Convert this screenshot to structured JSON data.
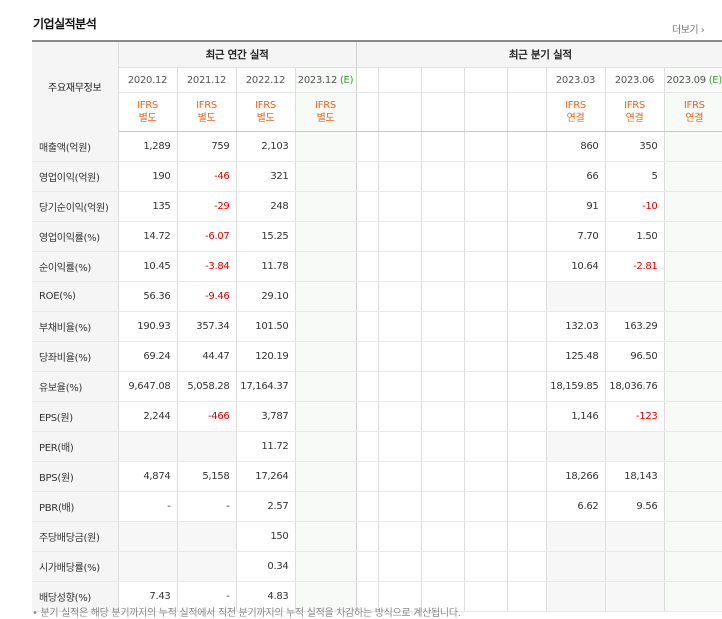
{
  "title": "기업실적분석",
  "more_label": "더보기",
  "corner_label": "주요재무정보",
  "annual_header": "최근 연간 실적",
  "quarter_header": "최근 분기 실적",
  "annual_periods": [
    "2020.12",
    "2021.12",
    "2022.12",
    "2023.12"
  ],
  "annual_est_mark": "(E)",
  "quarter_periods": [
    "",
    "",
    "",
    "",
    "",
    "2023.03",
    "2023.06",
    "2023.09"
  ],
  "quarter_est_mark": "(E)",
  "annual_standards": [
    [
      "IFRS",
      "별도"
    ],
    [
      "IFRS",
      "별도"
    ],
    [
      "IFRS",
      "별도"
    ],
    [
      "IFRS",
      "별도"
    ]
  ],
  "quarter_standards": [
    [
      "",
      ""
    ],
    [
      "",
      ""
    ],
    [
      "",
      ""
    ],
    [
      "",
      ""
    ],
    [
      "",
      ""
    ],
    [
      "IFRS",
      "연결"
    ],
    [
      "IFRS",
      "연결"
    ],
    [
      "IFRS",
      "연결"
    ]
  ],
  "rows": [
    {
      "label": "매출액(억원)",
      "annual": [
        "1,289",
        "759",
        "2,103",
        ""
      ],
      "quarter": [
        "",
        "",
        "",
        "",
        "",
        "860",
        "350",
        ""
      ]
    },
    {
      "label": "영업이익(억원)",
      "annual": [
        "190",
        "-46",
        "321",
        ""
      ],
      "quarter": [
        "",
        "",
        "",
        "",
        "",
        "66",
        "5",
        ""
      ]
    },
    {
      "label": "당기순이익(억원)",
      "annual": [
        "135",
        "-29",
        "248",
        ""
      ],
      "quarter": [
        "",
        "",
        "",
        "",
        "",
        "91",
        "-10",
        ""
      ]
    },
    {
      "label": "영업이익률(%)",
      "annual": [
        "14.72",
        "-6.07",
        "15.25",
        ""
      ],
      "quarter": [
        "",
        "",
        "",
        "",
        "",
        "7.70",
        "1.50",
        ""
      ]
    },
    {
      "label": "순이익률(%)",
      "annual": [
        "10.45",
        "-3.84",
        "11.78",
        ""
      ],
      "quarter": [
        "",
        "",
        "",
        "",
        "",
        "10.64",
        "-2.81",
        ""
      ]
    },
    {
      "label": "ROE(%)",
      "annual": [
        "56.36",
        "-9.46",
        "29.10",
        ""
      ],
      "quarter": [
        "",
        "",
        "",
        "",
        "",
        "",
        "",
        ""
      ]
    },
    {
      "label": "부채비율(%)",
      "annual": [
        "190.93",
        "357.34",
        "101.50",
        ""
      ],
      "quarter": [
        "",
        "",
        "",
        "",
        "",
        "132.03",
        "163.29",
        ""
      ]
    },
    {
      "label": "당좌비율(%)",
      "annual": [
        "69.24",
        "44.47",
        "120.19",
        ""
      ],
      "quarter": [
        "",
        "",
        "",
        "",
        "",
        "125.48",
        "96.50",
        ""
      ]
    },
    {
      "label": "유보율(%)",
      "annual": [
        "9,647.08",
        "5,058.28",
        "17,164.37",
        ""
      ],
      "quarter": [
        "",
        "",
        "",
        "",
        "",
        "18,159.85",
        "18,036.76",
        ""
      ]
    },
    {
      "label": "EPS(원)",
      "annual": [
        "2,244",
        "-466",
        "3,787",
        ""
      ],
      "quarter": [
        "",
        "",
        "",
        "",
        "",
        "1,146",
        "-123",
        ""
      ]
    },
    {
      "label": "PER(배)",
      "annual": [
        "",
        "",
        "11.72",
        ""
      ],
      "quarter": [
        "",
        "",
        "",
        "",
        "",
        "",
        "",
        ""
      ]
    },
    {
      "label": "BPS(원)",
      "annual": [
        "4,874",
        "5,158",
        "17,264",
        ""
      ],
      "quarter": [
        "",
        "",
        "",
        "",
        "",
        "18,266",
        "18,143",
        ""
      ]
    },
    {
      "label": "PBR(배)",
      "annual": [
        "-",
        "-",
        "2.57",
        ""
      ],
      "quarter": [
        "",
        "",
        "",
        "",
        "",
        "6.62",
        "9.56",
        ""
      ]
    },
    {
      "label": "주당배당금(원)",
      "annual": [
        "",
        "",
        "150",
        ""
      ],
      "quarter": [
        "",
        "",
        "",
        "",
        "",
        "",
        "",
        ""
      ]
    },
    {
      "label": "시가배당률(%)",
      "annual": [
        "",
        "",
        "0.34",
        ""
      ],
      "quarter": [
        "",
        "",
        "",
        "",
        "",
        "",
        "",
        ""
      ]
    },
    {
      "label": "배당성향(%)",
      "annual": [
        "7.43",
        "-",
        "4.83",
        ""
      ],
      "quarter": [
        "",
        "",
        "",
        "",
        "",
        "",
        "",
        ""
      ]
    }
  ],
  "footnote": "• 분기 실적은 해당 분기까지의 누적 실적에서 직전 분기까지의 누적 실적을 차감하는 방식으로 계산됩니다."
}
